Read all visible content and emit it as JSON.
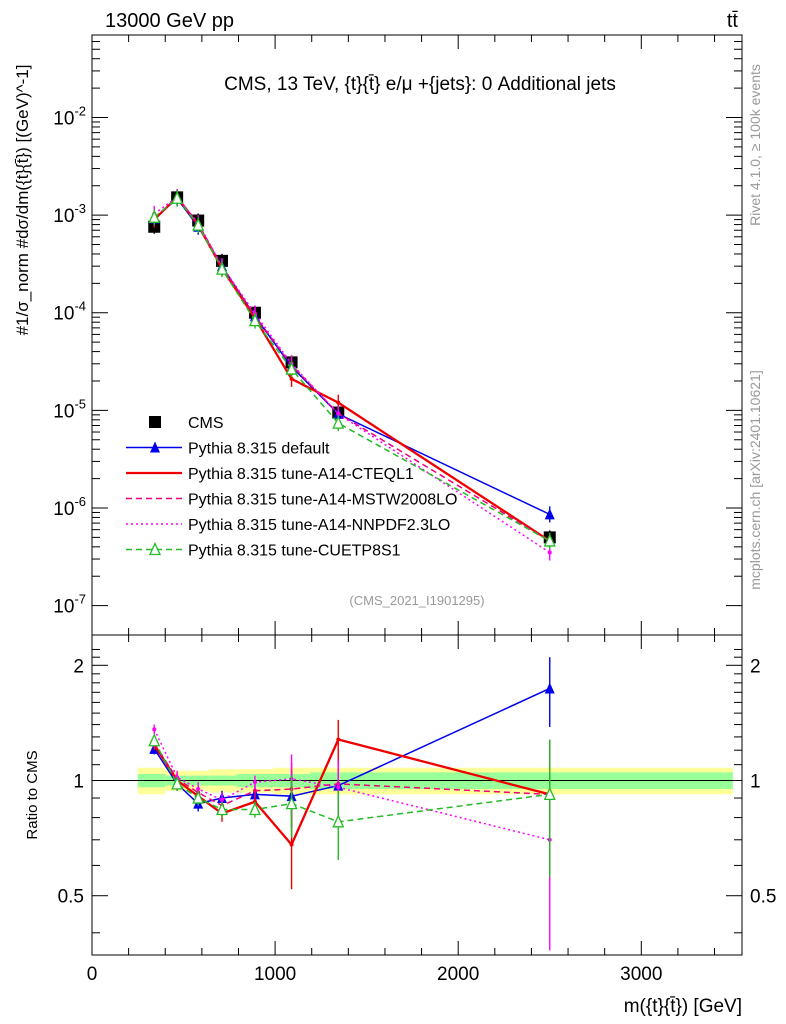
{
  "header": {
    "beam": "13000 GeV pp",
    "process": "tt̄"
  },
  "side_labels": {
    "rivet": "Rivet 4.1.0, ≥ 100k events",
    "site": "mcplots.cern.ch [arXiv:2401.10621]"
  },
  "chart_data": [
    {
      "type": "line",
      "title": "CMS, 13 TeV, {t}{t̄} e/μ +{jets}: 0 Additional jets",
      "watermark": "(CMS_2021_I1901295)",
      "ylabel": "#1/σ_norm #dσ/dm({t}{t̄}) [(GeV)^-1]",
      "yscale": "log",
      "ylim": [
        5e-08,
        0.07
      ],
      "xlim": [
        0,
        3550
      ],
      "ytick_labels": [
        "10^-7",
        "10^-6",
        "10^-5",
        "10^-4",
        "10^-3",
        "10^-2"
      ],
      "legend_position": "center-left",
      "x": [
        340,
        465,
        580,
        710,
        890,
        1090,
        1345,
        2500
      ],
      "series": [
        {
          "name": "CMS",
          "color": "#000000",
          "marker": "square",
          "values": [
            0.00076,
            0.00152,
            0.00088,
            0.00034,
            0.0001,
            3.1e-05,
            9.5e-06,
            5e-07
          ]
        },
        {
          "name": "Pythia 8.315 default",
          "color": "#0000ee",
          "marker": "triangle",
          "style": "solid",
          "values": [
            0.00092,
            0.00148,
            0.00076,
            0.0003,
            9.2e-05,
            2.8e-05,
            9.2e-06,
            8.6e-07
          ]
        },
        {
          "name": "Pythia 8.315 tune-A14-CTEQL1",
          "color": "#ee0000",
          "style": "solid",
          "values": [
            0.0009,
            0.00153,
            0.00079,
            0.000285,
            8.8e-05,
            2.1e-05,
            1.2e-05,
            4.6e-07
          ]
        },
        {
          "name": "Pythia 8.315 tune-A14-MSTW2008LO",
          "color": "#ee0077",
          "style": "dashed",
          "values": [
            0.00093,
            0.00152,
            0.00082,
            0.000295,
            9.3e-05,
            2.9e-05,
            9.3e-06,
            4.6e-07
          ]
        },
        {
          "name": "Pythia 8.315 tune-A14-NNPDF2.3LO",
          "color": "#ff00ff",
          "style": "dotted",
          "values": [
            0.00103,
            0.00153,
            0.00083,
            0.0003,
            9.8e-05,
            3e-05,
            9.2e-06,
            3.5e-07
          ]
        },
        {
          "name": "Pythia 8.315 tune-CUETP8S1",
          "color": "#22bb22",
          "marker": "open-triangle",
          "style": "dashed",
          "values": [
            0.00095,
            0.00149,
            0.00079,
            0.00028,
            8.3e-05,
            2.65e-05,
            7.4e-06,
            4.6e-07
          ]
        }
      ]
    },
    {
      "type": "line",
      "ylabel": "Ratio to CMS",
      "xlabel": "m({t}{t̄}) [GeV]",
      "ylim": [
        0.35,
        2.4
      ],
      "yticks": [
        0.5,
        1,
        2
      ],
      "ytick_labels": [
        "0.5",
        "1",
        "2"
      ],
      "xticks": [
        0,
        1000,
        2000,
        3000
      ],
      "xtick_labels": [
        "0",
        "1000",
        "2000",
        "3000"
      ],
      "x": [
        340,
        465,
        580,
        710,
        890,
        1090,
        1345,
        2500
      ],
      "band_edges": [
        250,
        400,
        525,
        640,
        790,
        990,
        1190,
        1500,
        3500
      ],
      "band_green": [
        0.04,
        0.03,
        0.03,
        0.03,
        0.04,
        0.04,
        0.05,
        0.05
      ],
      "band_yellow": [
        0.08,
        0.06,
        0.06,
        0.07,
        0.07,
        0.08,
        0.08,
        0.08
      ],
      "series": [
        {
          "name": "Pythia 8.315 default",
          "color": "#0000ee",
          "marker": "triangle",
          "style": "solid",
          "values": [
            1.21,
            0.98,
            0.87,
            0.9,
            0.92,
            0.91,
            0.97,
            1.74
          ]
        },
        {
          "name": "Pythia 8.315 tune-A14-CTEQL1",
          "color": "#ee0000",
          "style": "solid",
          "values": [
            1.24,
            1.0,
            0.91,
            0.82,
            0.88,
            0.68,
            1.28,
            0.92
          ]
        },
        {
          "name": "Pythia 8.315 tune-A14-MSTW2008LO",
          "color": "#ee0077",
          "style": "dashed",
          "values": [
            1.25,
            1.01,
            0.93,
            0.86,
            0.94,
            0.95,
            0.98,
            0.92
          ]
        },
        {
          "name": "Pythia 8.315 tune-A14-NNPDF2.3LO",
          "color": "#ff00ff",
          "style": "dotted",
          "values": [
            1.36,
            1.02,
            0.95,
            0.89,
            0.99,
            1.01,
            0.96,
            0.7
          ]
        },
        {
          "name": "Pythia 8.315 tune-CUETP8S1",
          "color": "#22bb22",
          "marker": "open-triangle",
          "style": "dashed",
          "values": [
            1.27,
            0.98,
            0.9,
            0.84,
            0.84,
            0.87,
            0.78,
            0.92
          ]
        }
      ]
    }
  ]
}
